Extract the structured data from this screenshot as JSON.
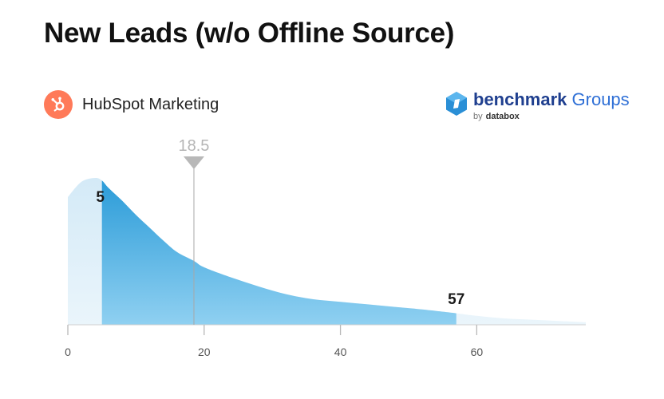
{
  "title": "New Leads (w/o Offline Source)",
  "source": {
    "label": "HubSpot Marketing",
    "icon": "hubspot-icon",
    "icon_color": "#ff7a59"
  },
  "brand": {
    "name_bold": "benchmark",
    "name_light": "Groups",
    "by": "by",
    "company": "databox"
  },
  "chart_data": {
    "type": "area",
    "x": [
      0,
      2,
      4,
      5,
      6,
      8,
      10,
      12,
      14,
      16,
      18.5,
      20,
      24,
      28,
      32,
      36,
      40,
      44,
      48,
      52,
      57,
      60,
      64,
      68,
      72,
      76
    ],
    "y": [
      1.0,
      1.12,
      1.15,
      1.13,
      1.07,
      0.97,
      0.86,
      0.76,
      0.66,
      0.57,
      0.5,
      0.45,
      0.37,
      0.3,
      0.24,
      0.2,
      0.18,
      0.16,
      0.14,
      0.12,
      0.09,
      0.07,
      0.05,
      0.04,
      0.03,
      0.02
    ],
    "xlim": [
      0,
      76
    ],
    "xticks": [
      "0",
      "20",
      "40",
      "60"
    ],
    "xtick_values": [
      0,
      20,
      40,
      60
    ],
    "range_low": 5,
    "range_high": 57,
    "range_low_label": "5",
    "range_high_label": "57",
    "median": 18.5,
    "median_label": "18.5",
    "colors": {
      "dark": "#2f9fd9",
      "mid": "#6cc0ea",
      "light": "#e3f0f9",
      "median_line": "#a8a8a8",
      "axis": "#b8b8b8"
    }
  }
}
